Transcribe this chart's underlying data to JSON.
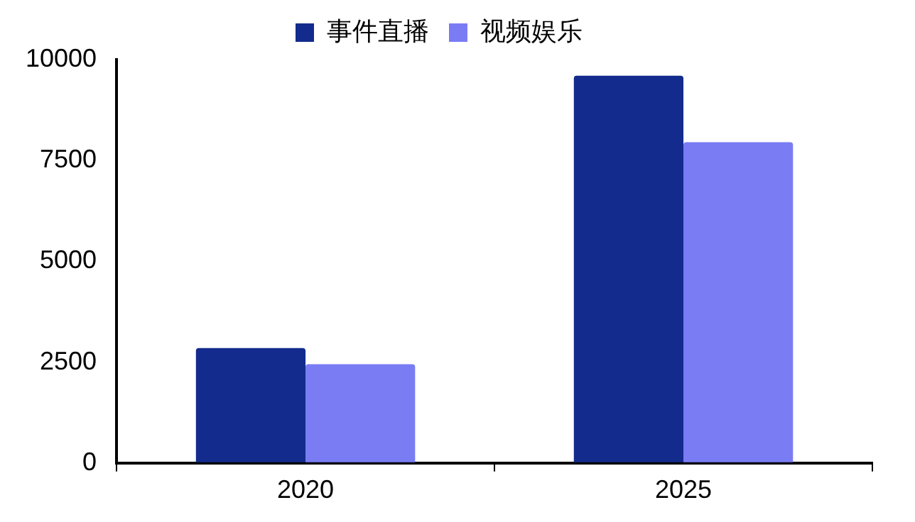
{
  "chart_data": {
    "type": "bar",
    "categories": [
      "2020",
      "2025"
    ],
    "series": [
      {
        "name": "事件直播",
        "color": "#132b8c",
        "values": [
          2850,
          9600
        ]
      },
      {
        "name": "视频娱乐",
        "color": "#7a7cf4",
        "values": [
          2450,
          7950
        ]
      }
    ],
    "ylim": [
      0,
      10000
    ],
    "yticks": [
      0,
      2500,
      5000,
      7500,
      10000
    ],
    "grid": false,
    "legend": "top"
  }
}
